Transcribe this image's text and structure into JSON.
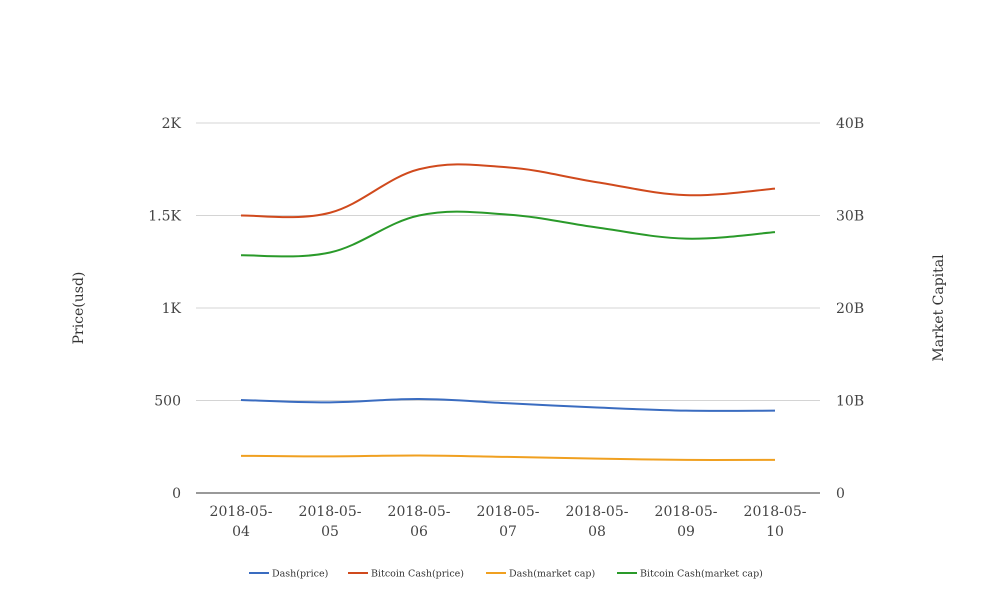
{
  "chart_data": {
    "type": "line",
    "categories": [
      "2018-05-04",
      "2018-05-05",
      "2018-05-06",
      "2018-05-07",
      "2018-05-08",
      "2018-05-09",
      "2018-05-10"
    ],
    "category_label_lines": [
      [
        "2018-05-",
        "04"
      ],
      [
        "2018-05-",
        "05"
      ],
      [
        "2018-05-",
        "06"
      ],
      [
        "2018-05-",
        "07"
      ],
      [
        "2018-05-",
        "08"
      ],
      [
        "2018-05-",
        "09"
      ],
      [
        "2018-05-",
        "10"
      ]
    ],
    "y_left": {
      "label": "Price(usd)",
      "ylim": [
        0,
        2000
      ],
      "ticks": [
        0,
        500,
        1000,
        1500,
        2000
      ],
      "tick_labels": [
        "0",
        "500",
        "1K",
        "1.5K",
        "2K"
      ]
    },
    "y_right": {
      "label": "Market Capital",
      "ylim": [
        0,
        40000000000
      ],
      "ticks": [
        0,
        10000000000,
        20000000000,
        30000000000,
        40000000000
      ],
      "tick_labels": [
        "0",
        "10B",
        "20B",
        "30B",
        "40B"
      ]
    },
    "grid": true,
    "legend_position": "bottom",
    "series": [
      {
        "name": "Dash(price)",
        "axis": "left",
        "color": "#3a6cc0",
        "values": [
          503,
          490,
          508,
          485,
          462,
          445,
          445
        ]
      },
      {
        "name": "Bitcoin Cash(price)",
        "axis": "right",
        "color": "#d04a1d",
        "values": [
          30000000000,
          30300000000,
          35000000000,
          35200000000,
          33600000000,
          32200000000,
          32900000000
        ]
      },
      {
        "name": "Dash(market cap)",
        "axis": "right",
        "color": "#f0a020",
        "values": [
          4020000000,
          3960000000,
          4060000000,
          3900000000,
          3720000000,
          3580000000,
          3580000000
        ]
      },
      {
        "name": "Bitcoin Cash(market cap)",
        "axis": "right",
        "color": "#2a9a2a",
        "values": [
          25700000000,
          26000000000,
          30000000000,
          30100000000,
          28700000000,
          27500000000,
          28200000000
        ]
      }
    ]
  }
}
